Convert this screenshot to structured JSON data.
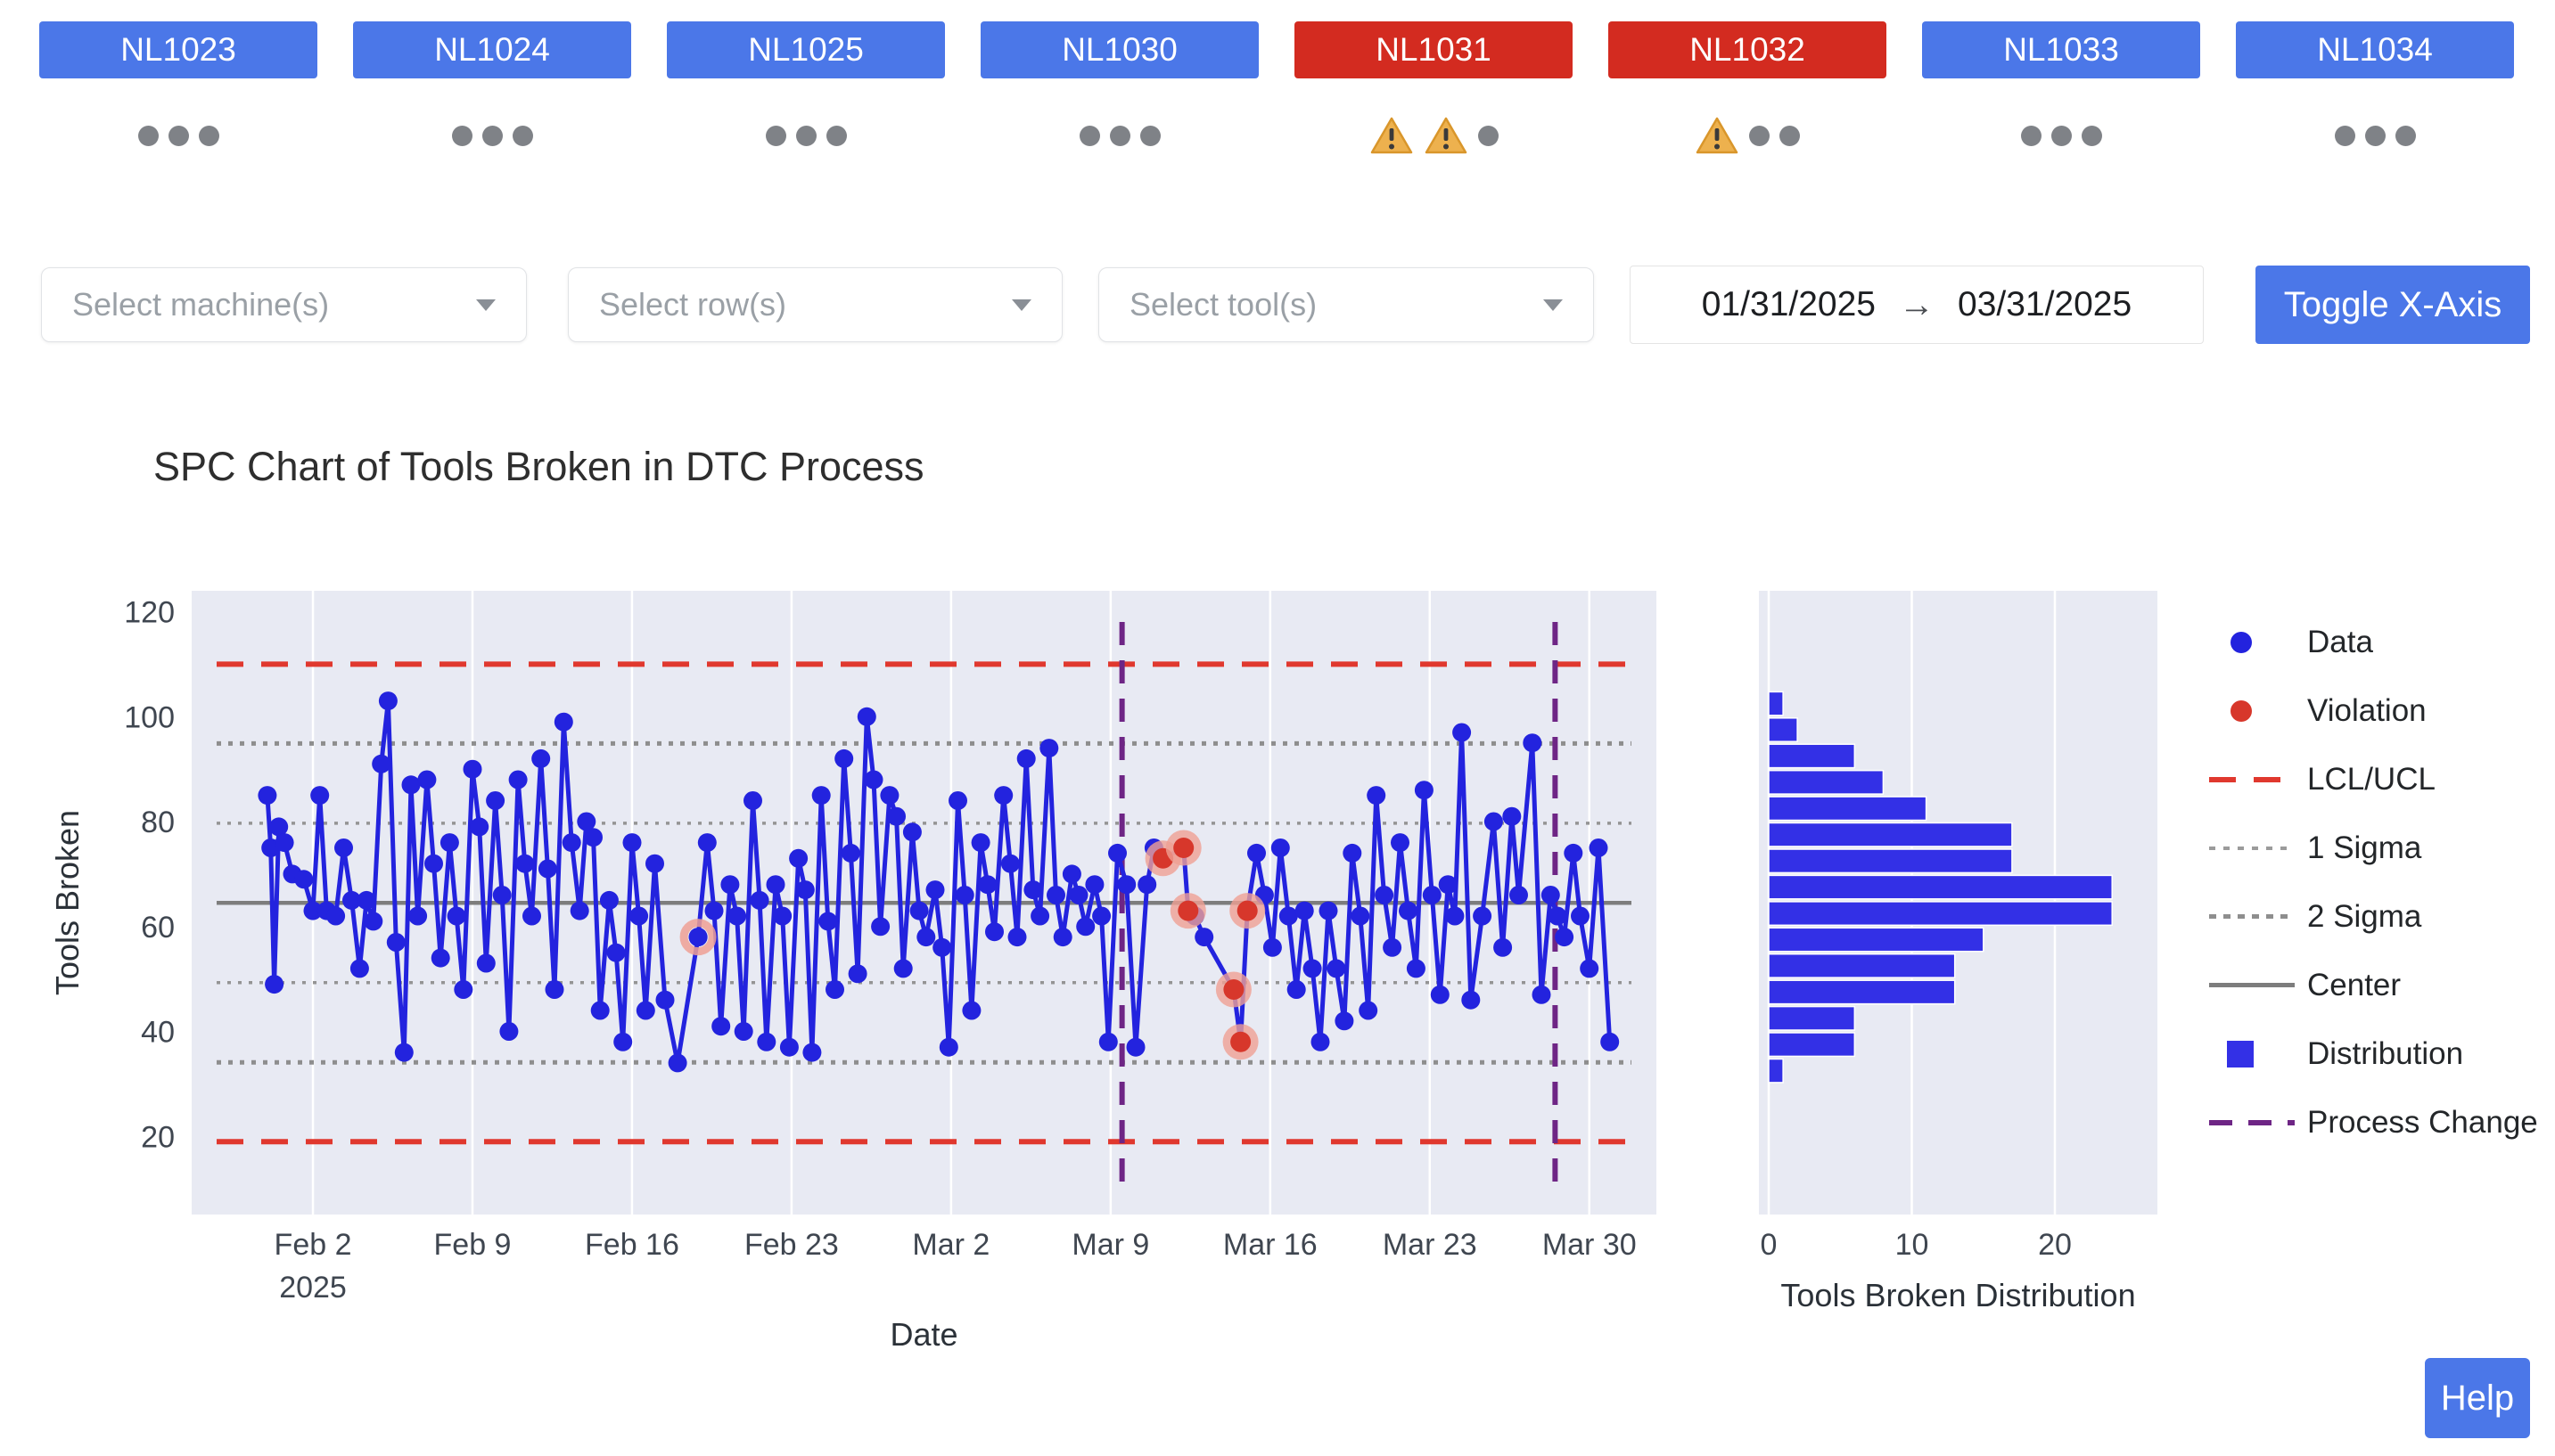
{
  "machines": [
    {
      "label": "NL1023",
      "alert": false,
      "indicators": [
        "dot",
        "dot",
        "dot"
      ]
    },
    {
      "label": "NL1024",
      "alert": false,
      "indicators": [
        "dot",
        "dot",
        "dot"
      ]
    },
    {
      "label": "NL1025",
      "alert": false,
      "indicators": [
        "dot",
        "dot",
        "dot"
      ]
    },
    {
      "label": "NL1030",
      "alert": false,
      "indicators": [
        "dot",
        "dot",
        "dot"
      ]
    },
    {
      "label": "NL1031",
      "alert": true,
      "indicators": [
        "warning",
        "warning",
        "dot"
      ]
    },
    {
      "label": "NL1032",
      "alert": true,
      "indicators": [
        "warning",
        "dot",
        "dot"
      ]
    },
    {
      "label": "NL1033",
      "alert": false,
      "indicators": [
        "dot",
        "dot",
        "dot"
      ]
    },
    {
      "label": "NL1034",
      "alert": false,
      "indicators": [
        "dot",
        "dot",
        "dot"
      ]
    }
  ],
  "filters": {
    "machine_placeholder": "Select machine(s)",
    "row_placeholder": "Select row(s)",
    "tool_placeholder": "Select tool(s)"
  },
  "date_range": {
    "start": "01/31/2025",
    "end": "03/31/2025",
    "arrow": "→"
  },
  "toggle_button": {
    "label": "Toggle X-Axis"
  },
  "help_button": {
    "label": "Help"
  },
  "legend": [
    {
      "label": "Data",
      "type": "data-point"
    },
    {
      "label": "Violation",
      "type": "violation-point"
    },
    {
      "label": "LCL/UCL",
      "type": "lcl-ucl-line"
    },
    {
      "label": "1 Sigma",
      "type": "sigma1-line"
    },
    {
      "label": "2 Sigma",
      "type": "sigma2-line"
    },
    {
      "label": "Center",
      "type": "center-line"
    },
    {
      "label": "Distribution",
      "type": "distribution-swatch"
    },
    {
      "label": "Process Change",
      "type": "process-change-line"
    }
  ],
  "colors": {
    "primary_blue": "#4b77e8",
    "alert_red": "#d32b20",
    "data_blue": "#2323de",
    "violation_red": "#d7372b",
    "violation_halo": "#efa094",
    "control_red": "#e0382e",
    "sigma_gray": "#949494",
    "center_gray": "#7d7d7d",
    "process_purple": "#6e2585",
    "bar_blue": "#3330e6",
    "plot_bg": "#e8eaf3",
    "warning_amber": "#edb14e",
    "status_dot_gray": "#7f8287"
  },
  "chart_data": [
    {
      "type": "line",
      "title": "SPC Chart of Tools Broken in DTC Process",
      "xlabel": "Date",
      "ylabel": "Tools Broken",
      "ylim": [
        5,
        124
      ],
      "yticks": [
        20,
        40,
        60,
        80,
        100,
        120
      ],
      "x_start_date": "01/31/2025",
      "xticks": [
        {
          "day": 2,
          "label": "Feb 2",
          "sublabel": "2025"
        },
        {
          "day": 9,
          "label": "Feb 9"
        },
        {
          "day": 16,
          "label": "Feb 16"
        },
        {
          "day": 23,
          "label": "Feb 23"
        },
        {
          "day": 30,
          "label": "Mar 2"
        },
        {
          "day": 37,
          "label": "Mar 9"
        },
        {
          "day": 44,
          "label": "Mar 16"
        },
        {
          "day": 51,
          "label": "Mar 23"
        },
        {
          "day": 58,
          "label": "Mar 30"
        }
      ],
      "center": 64.5,
      "ucl": 110,
      "lcl": 19,
      "sigma1": [
        49.3,
        79.7
      ],
      "sigma2": [
        34.1,
        94.9
      ],
      "process_change_days": [
        37.5,
        56.5
      ],
      "points": [
        [
          0,
          85
        ],
        [
          0.15,
          75
        ],
        [
          0.3,
          49
        ],
        [
          0.5,
          79
        ],
        [
          0.75,
          76
        ],
        [
          1.1,
          70
        ],
        [
          1.6,
          69
        ],
        [
          2,
          63
        ],
        [
          2.3,
          85
        ],
        [
          2.6,
          63
        ],
        [
          3,
          62
        ],
        [
          3.35,
          75
        ],
        [
          3.7,
          65
        ],
        [
          4.05,
          52
        ],
        [
          4.35,
          65
        ],
        [
          4.65,
          61
        ],
        [
          5,
          91
        ],
        [
          5.3,
          103
        ],
        [
          5.65,
          57
        ],
        [
          6,
          36
        ],
        [
          6.3,
          87
        ],
        [
          6.6,
          62
        ],
        [
          7,
          88
        ],
        [
          7.3,
          72
        ],
        [
          7.6,
          54
        ],
        [
          8,
          76
        ],
        [
          8.3,
          62
        ],
        [
          8.6,
          48
        ],
        [
          9,
          90
        ],
        [
          9.3,
          79
        ],
        [
          9.6,
          53
        ],
        [
          10,
          84
        ],
        [
          10.3,
          66
        ],
        [
          10.6,
          40
        ],
        [
          11,
          88
        ],
        [
          11.3,
          72
        ],
        [
          11.6,
          62
        ],
        [
          12,
          92
        ],
        [
          12.3,
          71
        ],
        [
          12.6,
          48
        ],
        [
          13,
          99
        ],
        [
          13.35,
          76
        ],
        [
          13.7,
          63
        ],
        [
          14,
          80
        ],
        [
          14.3,
          77
        ],
        [
          14.6,
          44
        ],
        [
          15,
          65
        ],
        [
          15.3,
          55
        ],
        [
          15.6,
          38
        ],
        [
          16,
          76
        ],
        [
          16.3,
          62
        ],
        [
          16.6,
          44
        ],
        [
          17,
          72
        ],
        [
          17.45,
          46
        ],
        [
          18,
          34
        ],
        [
          18.9,
          58
        ],
        [
          19.3,
          76
        ],
        [
          19.6,
          63
        ],
        [
          19.9,
          41
        ],
        [
          20.3,
          68
        ],
        [
          20.6,
          62
        ],
        [
          20.9,
          40
        ],
        [
          21.3,
          84
        ],
        [
          21.6,
          65
        ],
        [
          21.9,
          38
        ],
        [
          22.3,
          68
        ],
        [
          22.6,
          62
        ],
        [
          22.9,
          37
        ],
        [
          23.3,
          73
        ],
        [
          23.6,
          67
        ],
        [
          23.9,
          36
        ],
        [
          24.3,
          85
        ],
        [
          24.6,
          61
        ],
        [
          24.9,
          48
        ],
        [
          25.3,
          92
        ],
        [
          25.6,
          74
        ],
        [
          25.9,
          51
        ],
        [
          26.3,
          100
        ],
        [
          26.6,
          88
        ],
        [
          26.9,
          60
        ],
        [
          27.3,
          85
        ],
        [
          27.6,
          81
        ],
        [
          27.9,
          52
        ],
        [
          28.3,
          78
        ],
        [
          28.6,
          63
        ],
        [
          28.9,
          58
        ],
        [
          29.3,
          67
        ],
        [
          29.6,
          56
        ],
        [
          29.9,
          37
        ],
        [
          30.3,
          84
        ],
        [
          30.6,
          66
        ],
        [
          30.9,
          44
        ],
        [
          31.3,
          76
        ],
        [
          31.6,
          68
        ],
        [
          31.9,
          59
        ],
        [
          32.3,
          85
        ],
        [
          32.6,
          72
        ],
        [
          32.9,
          58
        ],
        [
          33.3,
          92
        ],
        [
          33.6,
          67
        ],
        [
          33.9,
          62
        ],
        [
          34.3,
          94
        ],
        [
          34.6,
          66
        ],
        [
          34.9,
          58
        ],
        [
          35.3,
          70
        ],
        [
          35.6,
          66
        ],
        [
          35.9,
          60
        ],
        [
          36.3,
          68
        ],
        [
          36.6,
          62
        ],
        [
          36.9,
          38
        ],
        [
          37.3,
          74
        ],
        [
          37.7,
          68
        ],
        [
          38.1,
          37
        ],
        [
          38.6,
          68
        ],
        [
          38.9,
          75
        ],
        [
          39.3,
          73
        ],
        [
          40.2,
          75
        ],
        [
          40.4,
          63
        ],
        [
          40.7,
          62
        ],
        [
          41.1,
          58
        ],
        [
          42.4,
          48
        ],
        [
          42.7,
          38
        ],
        [
          43,
          63
        ],
        [
          43.4,
          74
        ],
        [
          43.75,
          66
        ],
        [
          44.1,
          56
        ],
        [
          44.45,
          75
        ],
        [
          44.8,
          62
        ],
        [
          45.15,
          48
        ],
        [
          45.5,
          63
        ],
        [
          45.85,
          52
        ],
        [
          46.2,
          38
        ],
        [
          46.55,
          63
        ],
        [
          46.9,
          52
        ],
        [
          47.25,
          42
        ],
        [
          47.6,
          74
        ],
        [
          47.95,
          62
        ],
        [
          48.3,
          44
        ],
        [
          48.65,
          85
        ],
        [
          49,
          66
        ],
        [
          49.35,
          56
        ],
        [
          49.7,
          76
        ],
        [
          50.05,
          63
        ],
        [
          50.4,
          52
        ],
        [
          50.75,
          86
        ],
        [
          51.1,
          66
        ],
        [
          51.45,
          47
        ],
        [
          51.8,
          68
        ],
        [
          52.1,
          62
        ],
        [
          52.4,
          97
        ],
        [
          52.8,
          46
        ],
        [
          53.3,
          62
        ],
        [
          53.8,
          80
        ],
        [
          54.2,
          56
        ],
        [
          54.6,
          81
        ],
        [
          54.9,
          66
        ],
        [
          55.5,
          95
        ],
        [
          55.9,
          47
        ],
        [
          56.3,
          66
        ],
        [
          56.6,
          62
        ],
        [
          56.9,
          58
        ],
        [
          57.3,
          74
        ],
        [
          57.6,
          62
        ],
        [
          58,
          52
        ],
        [
          58.4,
          75
        ],
        [
          58.9,
          38
        ]
      ],
      "violations": [
        [
          39.3,
          73
        ],
        [
          40.2,
          75
        ],
        [
          40.4,
          63
        ],
        [
          42.4,
          48
        ],
        [
          42.7,
          38
        ],
        [
          43,
          63
        ]
      ],
      "halo_points": [
        [
          18.9,
          58
        ]
      ]
    },
    {
      "type": "bar",
      "orientation": "horizontal",
      "xlabel": "Tools Broken Distribution",
      "xticks": [
        0,
        10,
        20
      ],
      "xlim": [
        0,
        27
      ],
      "bin_start": 30,
      "bin_width": 5,
      "counts_bottom_to_top": [
        1,
        6,
        6,
        13,
        13,
        15,
        24,
        24,
        17,
        17,
        11,
        8,
        6,
        2,
        1
      ]
    }
  ]
}
